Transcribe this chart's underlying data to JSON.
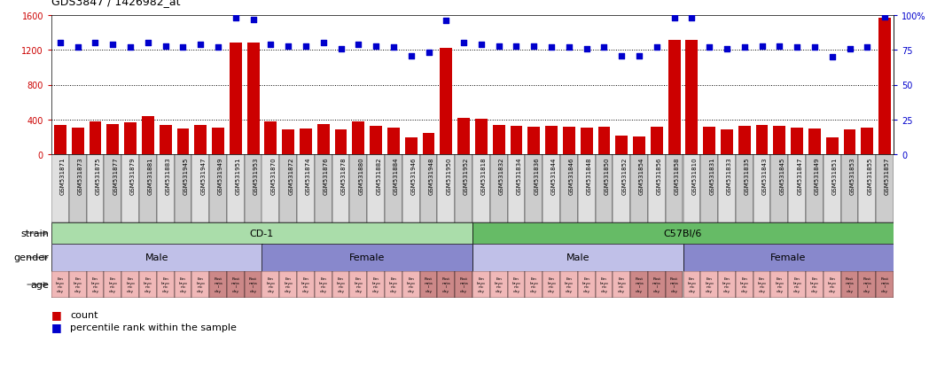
{
  "title": "GDS3847 / 1426982_at",
  "samples": [
    "GSM531871",
    "GSM531873",
    "GSM531875",
    "GSM531877",
    "GSM531879",
    "GSM531881",
    "GSM531883",
    "GSM531945",
    "GSM531947",
    "GSM531949",
    "GSM531951",
    "GSM531953",
    "GSM531870",
    "GSM531872",
    "GSM531874",
    "GSM531876",
    "GSM531878",
    "GSM531880",
    "GSM531882",
    "GSM531884",
    "GSM531946",
    "GSM531948",
    "GSM531950",
    "GSM531952",
    "GSM531818",
    "GSM531832",
    "GSM531834",
    "GSM531836",
    "GSM531844",
    "GSM531846",
    "GSM531848",
    "GSM531850",
    "GSM531852",
    "GSM531854",
    "GSM531856",
    "GSM531858",
    "GSM531810",
    "GSM531831",
    "GSM531833",
    "GSM531835",
    "GSM531843",
    "GSM531845",
    "GSM531847",
    "GSM531849",
    "GSM531851",
    "GSM531853",
    "GSM531855",
    "GSM531857"
  ],
  "counts": [
    340,
    310,
    380,
    350,
    370,
    440,
    340,
    300,
    340,
    310,
    1280,
    1280,
    380,
    290,
    300,
    350,
    290,
    380,
    330,
    310,
    190,
    240,
    1220,
    420,
    410,
    340,
    330,
    320,
    330,
    320,
    310,
    320,
    210,
    200,
    320,
    1310,
    1310,
    320,
    290,
    330,
    340,
    330,
    310,
    300,
    190,
    290,
    310,
    1570
  ],
  "percentiles": [
    80,
    77,
    80,
    79,
    77,
    80,
    78,
    77,
    79,
    77,
    98,
    97,
    79,
    78,
    78,
    80,
    76,
    79,
    78,
    77,
    71,
    73,
    96,
    80,
    79,
    78,
    78,
    78,
    77,
    77,
    76,
    77,
    71,
    71,
    77,
    98,
    98,
    77,
    76,
    77,
    78,
    78,
    77,
    77,
    70,
    76,
    77,
    99
  ],
  "left_ylim": [
    0,
    1600
  ],
  "left_yticks": [
    0,
    400,
    800,
    1200,
    1600
  ],
  "right_ylim": [
    0,
    100
  ],
  "right_yticks": [
    0,
    25,
    50,
    75,
    100
  ],
  "right_yticklabels": [
    "0",
    "25",
    "50",
    "75",
    "100%"
  ],
  "bar_color": "#cc0000",
  "dot_color": "#0000cc",
  "background_color": "#ffffff",
  "strain_segments": [
    {
      "text": "CD-1",
      "start": 0,
      "end": 24,
      "color": "#aaddaa"
    },
    {
      "text": "C57Bl/6",
      "start": 24,
      "end": 48,
      "color": "#66bb66"
    }
  ],
  "gender_segments": [
    {
      "text": "Male",
      "start": 0,
      "end": 12,
      "color": "#c0c0e8"
    },
    {
      "text": "Female",
      "start": 12,
      "end": 24,
      "color": "#8888cc"
    },
    {
      "text": "Male",
      "start": 24,
      "end": 36,
      "color": "#c0c0e8"
    },
    {
      "text": "Female",
      "start": 36,
      "end": 48,
      "color": "#8888cc"
    }
  ],
  "age_pattern": [
    "E",
    "E",
    "E",
    "E",
    "E",
    "E",
    "E",
    "E",
    "E",
    "P",
    "P",
    "P",
    "E",
    "E",
    "E",
    "E",
    "E",
    "E",
    "E",
    "E",
    "E",
    "P",
    "P",
    "P",
    "E",
    "E",
    "E",
    "E",
    "E",
    "E",
    "E",
    "E",
    "E",
    "P",
    "P",
    "P",
    "E",
    "E",
    "E",
    "E",
    "E",
    "E",
    "E",
    "E",
    "E",
    "P",
    "P",
    "P"
  ],
  "age_color_E": "#f0b8b8",
  "age_color_P": "#cc8888",
  "tick_color_left": "#cc0000",
  "tick_color_right": "#0000cc",
  "xtick_bg_even": "#e0e0e0",
  "xtick_bg_odd": "#cccccc"
}
